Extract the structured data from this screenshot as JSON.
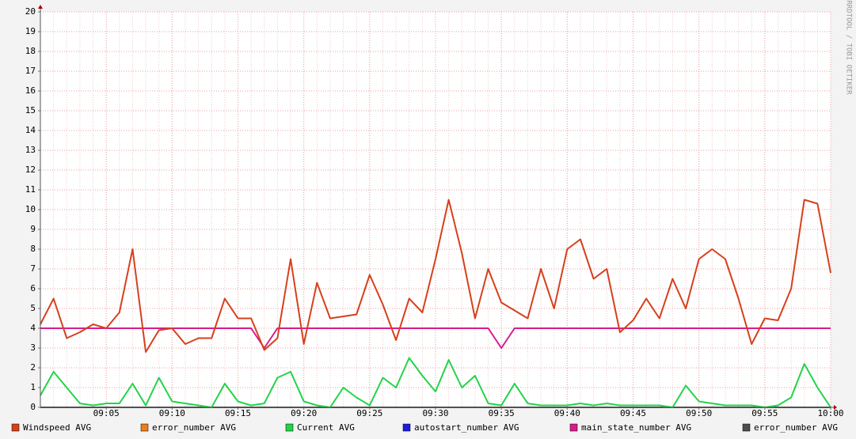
{
  "chart_data": {
    "type": "line",
    "watermark": "RRDTOOL / TOBI OETIKER",
    "xlim": [
      0,
      60
    ],
    "xticks": [
      {
        "value": 5,
        "label": "09:05"
      },
      {
        "value": 10,
        "label": "09:10"
      },
      {
        "value": 15,
        "label": "09:15"
      },
      {
        "value": 20,
        "label": "09:20"
      },
      {
        "value": 25,
        "label": "09:25"
      },
      {
        "value": 30,
        "label": "09:30"
      },
      {
        "value": 35,
        "label": "09:35"
      },
      {
        "value": 40,
        "label": "09:40"
      },
      {
        "value": 45,
        "label": "09:45"
      },
      {
        "value": 50,
        "label": "09:50"
      },
      {
        "value": 55,
        "label": "09:55"
      },
      {
        "value": 60,
        "label": "10:00"
      }
    ],
    "ylim": [
      0,
      20
    ],
    "yticks": [
      0,
      1,
      2,
      3,
      4,
      5,
      6,
      7,
      8,
      9,
      10,
      11,
      12,
      13,
      14,
      15,
      16,
      17,
      18,
      19,
      20
    ],
    "grid": true,
    "x": [
      0,
      1,
      2,
      3,
      4,
      5,
      6,
      7,
      8,
      9,
      10,
      11,
      12,
      13,
      14,
      15,
      16,
      17,
      18,
      19,
      20,
      21,
      22,
      23,
      24,
      25,
      26,
      27,
      28,
      29,
      30,
      31,
      32,
      33,
      34,
      35,
      36,
      37,
      38,
      39,
      40,
      41,
      42,
      43,
      44,
      45,
      46,
      47,
      48,
      49,
      50,
      51,
      52,
      53,
      54,
      55,
      56,
      57,
      58,
      59,
      60
    ],
    "series": [
      {
        "name": "error_number AVG",
        "color": "#ec7c1c",
        "values": [
          0,
          0,
          0,
          0,
          0,
          0,
          0,
          0,
          0,
          0,
          0,
          0,
          0,
          0,
          0,
          0,
          0,
          0,
          0,
          0,
          0,
          0,
          0,
          0,
          0,
          0,
          0,
          0,
          0,
          0,
          0,
          0,
          0,
          0,
          0,
          0,
          0,
          0,
          0,
          0,
          0,
          0,
          0,
          0,
          0,
          0,
          0,
          0,
          0,
          0,
          0,
          0,
          0,
          0,
          0,
          0,
          0,
          0,
          0,
          0,
          0
        ]
      },
      {
        "name": "autostart_number AVG",
        "color": "#1c1ce0",
        "values": [
          0,
          0,
          0,
          0,
          0,
          0,
          0,
          0,
          0,
          0,
          0,
          0,
          0,
          0,
          0,
          0,
          0,
          0,
          0,
          0,
          0,
          0,
          0,
          0,
          0,
          0,
          0,
          0,
          0,
          0,
          0,
          0,
          0,
          0,
          0,
          0,
          0,
          0,
          0,
          0,
          0,
          0,
          0,
          0,
          0,
          0,
          0,
          0,
          0,
          0,
          0,
          0,
          0,
          0,
          0,
          0,
          0,
          0,
          0,
          0,
          0
        ]
      },
      {
        "name": "error_number AVG",
        "color": "#4d4d4d",
        "values": [
          0,
          0,
          0,
          0,
          0,
          0,
          0,
          0,
          0,
          0,
          0,
          0,
          0,
          0,
          0,
          0,
          0,
          0,
          0,
          0,
          0,
          0,
          0,
          0,
          0,
          0,
          0,
          0,
          0,
          0,
          0,
          0,
          0,
          0,
          0,
          0,
          0,
          0,
          0,
          0,
          0,
          0,
          0,
          0,
          0,
          0,
          0,
          0,
          0,
          0,
          0,
          0,
          0,
          0,
          0,
          0,
          0,
          0,
          0,
          0,
          0
        ]
      },
      {
        "name": "Current AVG",
        "color": "#22d44a",
        "values": [
          0.6,
          1.8,
          1.0,
          0.2,
          0.1,
          0.2,
          0.2,
          1.2,
          0.1,
          1.5,
          0.3,
          0.2,
          0.1,
          0,
          1.2,
          0.3,
          0.1,
          0.2,
          1.5,
          1.8,
          0.3,
          0.1,
          0,
          1.0,
          0.5,
          0.1,
          1.5,
          1.0,
          2.5,
          1.6,
          0.8,
          2.4,
          1.0,
          1.6,
          0.2,
          0.1,
          1.2,
          0.2,
          0.1,
          0.1,
          0.1,
          0.2,
          0.1,
          0.2,
          0.1,
          0.1,
          0.1,
          0.1,
          0,
          1.1,
          0.3,
          0.2,
          0.1,
          0.1,
          0.1,
          0,
          0.1,
          0.5,
          2.2,
          1.0,
          0
        ]
      },
      {
        "name": "main_state_number AVG",
        "color": "#d61c8c",
        "values": [
          4,
          4,
          4,
          4,
          4,
          4,
          4,
          4,
          4,
          4,
          4,
          4,
          4,
          4,
          4,
          4,
          4,
          3,
          4,
          4,
          4,
          4,
          4,
          4,
          4,
          4,
          4,
          4,
          4,
          4,
          4,
          4,
          4,
          4,
          4,
          3,
          4,
          4,
          4,
          4,
          4,
          4,
          4,
          4,
          4,
          4,
          4,
          4,
          4,
          4,
          4,
          4,
          4,
          4,
          4,
          4,
          4,
          4,
          4,
          4,
          4
        ]
      },
      {
        "name": "Windspeed AVG",
        "color": "#d6401c",
        "values": [
          4.2,
          5.5,
          3.5,
          3.8,
          4.2,
          4.0,
          4.8,
          8.0,
          2.8,
          3.9,
          4.0,
          3.2,
          3.5,
          3.5,
          5.5,
          4.5,
          4.5,
          2.9,
          3.5,
          7.5,
          3.2,
          6.3,
          4.5,
          4.6,
          4.7,
          6.7,
          5.2,
          3.4,
          5.5,
          4.8,
          7.5,
          10.5,
          7.8,
          4.5,
          7.0,
          5.3,
          4.9,
          4.5,
          7.0,
          5.0,
          8.0,
          8.5,
          6.5,
          7.0,
          3.8,
          4.4,
          5.5,
          4.5,
          6.5,
          5.0,
          7.5,
          8.0,
          7.5,
          5.5,
          3.2,
          4.5,
          4.4,
          6.0,
          10.5,
          10.3,
          6.8
        ]
      }
    ],
    "legend_order": [
      5,
      0,
      3,
      1,
      4,
      2
    ]
  }
}
